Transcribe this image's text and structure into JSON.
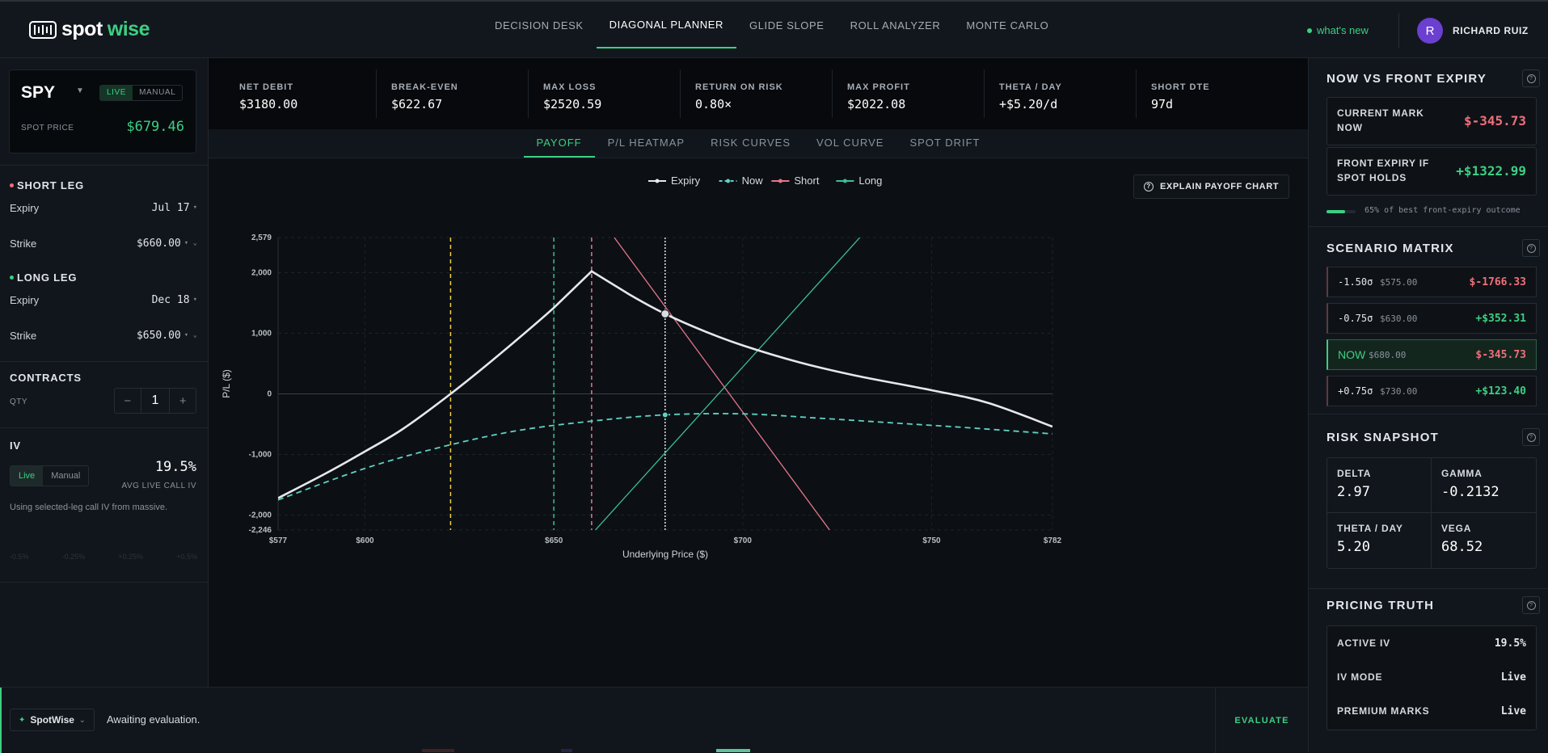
{
  "brand": {
    "part1": "spot",
    "part2": "wise"
  },
  "nav": [
    {
      "label": "DECISION DESK",
      "active": false
    },
    {
      "label": "DIAGONAL PLANNER",
      "active": true
    },
    {
      "label": "GLIDE SLOPE",
      "active": false
    },
    {
      "label": "ROLL ANALYZER",
      "active": false
    },
    {
      "label": "MONTE CARLO",
      "active": false
    }
  ],
  "whats_new": "what's new",
  "user": {
    "initial": "R",
    "name": "RICHARD RUIZ"
  },
  "sidebar": {
    "ticker": "SPY",
    "mode_live": "LIVE",
    "mode_manual": "MANUAL",
    "spot_label": "SPOT PRICE",
    "spot_value": "$679.46",
    "short_leg": {
      "title": "SHORT LEG",
      "expiry_label": "Expiry",
      "expiry": "Jul 17",
      "strike_label": "Strike",
      "strike": "$660.00"
    },
    "long_leg": {
      "title": "LONG LEG",
      "expiry_label": "Expiry",
      "expiry": "Dec 18",
      "strike_label": "Strike",
      "strike": "$650.00"
    },
    "contracts": {
      "title": "CONTRACTS",
      "qty_label": "QTY",
      "qty": "1",
      "minus": "−",
      "plus": "+"
    },
    "iv": {
      "title": "IV",
      "live": "Live",
      "manual": "Manual",
      "value": "19.5%",
      "sub": "AVG LIVE CALL IV",
      "note": "Using selected-leg call IV from massive.",
      "ghost": [
        "-0.5%",
        "-0.25%",
        "+0.25%",
        "+0.5%"
      ]
    }
  },
  "metrics": [
    {
      "label": "NET DEBIT",
      "value": "$3180.00",
      "tone": "white"
    },
    {
      "label": "BREAK-EVEN",
      "value": "$622.67",
      "tone": "white"
    },
    {
      "label": "MAX LOSS",
      "value": "$2520.59",
      "tone": "red"
    },
    {
      "label": "RETURN ON RISK",
      "value": "0.80×",
      "tone": "green"
    },
    {
      "label": "MAX PROFIT",
      "value": "$2022.08",
      "tone": "green"
    },
    {
      "label": "THETA / DAY",
      "value": "+$5.20/d",
      "tone": "green"
    },
    {
      "label": "SHORT DTE",
      "value": "97d",
      "tone": "white"
    }
  ],
  "chart_tabs": [
    {
      "label": "PAYOFF",
      "active": true
    },
    {
      "label": "P/L HEATMAP",
      "active": false
    },
    {
      "label": "RISK CURVES",
      "active": false
    },
    {
      "label": "VOL CURVE",
      "active": false
    },
    {
      "label": "SPOT DRIFT",
      "active": false
    }
  ],
  "explain_label": "EXPLAIN PAYOFF CHART",
  "chart_data": {
    "type": "line",
    "xlabel": "Underlying Price ($)",
    "ylabel": "P/L ($)",
    "xlim": [
      577,
      782
    ],
    "ylim": [
      -2246,
      2579
    ],
    "x_ticks": [
      {
        "v": 577,
        "label": "$577"
      },
      {
        "v": 600,
        "label": "$600"
      },
      {
        "v": 650,
        "label": "$650"
      },
      {
        "v": 700,
        "label": "$700"
      },
      {
        "v": 750,
        "label": "$750"
      },
      {
        "v": 782,
        "label": "$782"
      }
    ],
    "y_ticks": [
      {
        "v": 2579,
        "label": "2,579"
      },
      {
        "v": 2000,
        "label": "2,000"
      },
      {
        "v": 1000,
        "label": "1,000"
      },
      {
        "v": 0,
        "label": "0"
      },
      {
        "v": -1000,
        "label": "-1,000"
      },
      {
        "v": -2000,
        "label": "-2,000"
      },
      {
        "v": -2246,
        "label": "-2,246"
      }
    ],
    "legend": [
      {
        "name": "Expiry",
        "color": "#e6e8ec",
        "dash": false
      },
      {
        "name": "Now",
        "color": "#5fd3c1",
        "dash": true
      },
      {
        "name": "Short",
        "color": "#e8758a",
        "dash": false
      },
      {
        "name": "Long",
        "color": "#3cbf95",
        "dash": false
      }
    ],
    "series": [
      {
        "name": "Expiry",
        "color": "#e6e8ec",
        "x": [
          577,
          590,
          600,
          610,
          622.67,
          635,
          650,
          660,
          670,
          679.46,
          690,
          700,
          715,
          730,
          750,
          765,
          782
        ],
        "y": [
          -1720,
          -1300,
          -950,
          -580,
          0,
          620,
          1420,
          2022,
          1640,
          1320,
          1030,
          800,
          520,
          300,
          60,
          -150,
          -540
        ]
      },
      {
        "name": "Now",
        "color": "#5fd3c1",
        "dash": true,
        "x": [
          577,
          600,
          620,
          640,
          660,
          679.46,
          700,
          720,
          740,
          760,
          782
        ],
        "y": [
          -1750,
          -1230,
          -880,
          -610,
          -450,
          -346,
          -330,
          -400,
          -480,
          -560,
          -660
        ]
      },
      {
        "name": "Short",
        "color": "#e8758a",
        "x": [
          666,
          723
        ],
        "y": [
          2579,
          -2246
        ]
      },
      {
        "name": "Long",
        "color": "#3cbf95",
        "x": [
          661,
          731
        ],
        "y": [
          -2246,
          2579
        ]
      }
    ],
    "vlines": [
      {
        "x": 622.67,
        "color": "#f1cf45",
        "dash": true
      },
      {
        "x": 650,
        "color": "#3cbf95",
        "dash": true
      },
      {
        "x": 660,
        "color": "#e8758a",
        "dash": true
      },
      {
        "x": 679.46,
        "color": "#e6e8ec",
        "dash": true
      }
    ],
    "markers": [
      {
        "series": "Expiry",
        "x": 679.46,
        "y": 1320
      },
      {
        "series": "Now",
        "x": 679.46,
        "y": -346
      }
    ]
  },
  "status_bar": {
    "agent": "SpotWise",
    "text": "Awaiting evaluation.",
    "evaluate": "EVALUATE"
  },
  "right": {
    "nvf": {
      "title": "NOW VS FRONT EXPIRY",
      "mark_label1": "CURRENT MARK",
      "mark_label2": "NOW",
      "mark_value": "$-345.73",
      "front_label1": "FRONT EXPIRY IF",
      "front_label2": "SPOT HOLDS",
      "front_value": "+$1322.99",
      "progress_pct": 65,
      "progress_text": "65% of best front-expiry outcome"
    },
    "scenario": {
      "title": "SCENARIO MATRIX",
      "rows": [
        {
          "sigma": "-1.50σ",
          "price": "$575.00",
          "pl": "$-1766.33",
          "tone": "red",
          "now": false
        },
        {
          "sigma": "-0.75σ",
          "price": "$630.00",
          "pl": "+$352.31",
          "tone": "green",
          "now": false
        },
        {
          "sigma": "NOW",
          "price": "$680.00",
          "pl": "$-345.73",
          "tone": "red",
          "now": true
        },
        {
          "sigma": "+0.75σ",
          "price": "$730.00",
          "pl": "+$123.40",
          "tone": "green",
          "now": false
        }
      ]
    },
    "risk": {
      "title": "RISK SNAPSHOT",
      "delta_label": "DELTA",
      "delta": "2.97",
      "gamma_label": "GAMMA",
      "gamma": "-0.2132",
      "theta_label": "THETA / DAY",
      "theta": "5.20",
      "vega_label": "VEGA",
      "vega": "68.52"
    },
    "truth": {
      "title": "PRICING TRUTH",
      "rows": [
        {
          "label": "ACTIVE IV",
          "value": "19.5%"
        },
        {
          "label": "IV MODE",
          "value": "Live"
        },
        {
          "label": "PREMIUM MARKS",
          "value": "Live"
        }
      ]
    }
  }
}
